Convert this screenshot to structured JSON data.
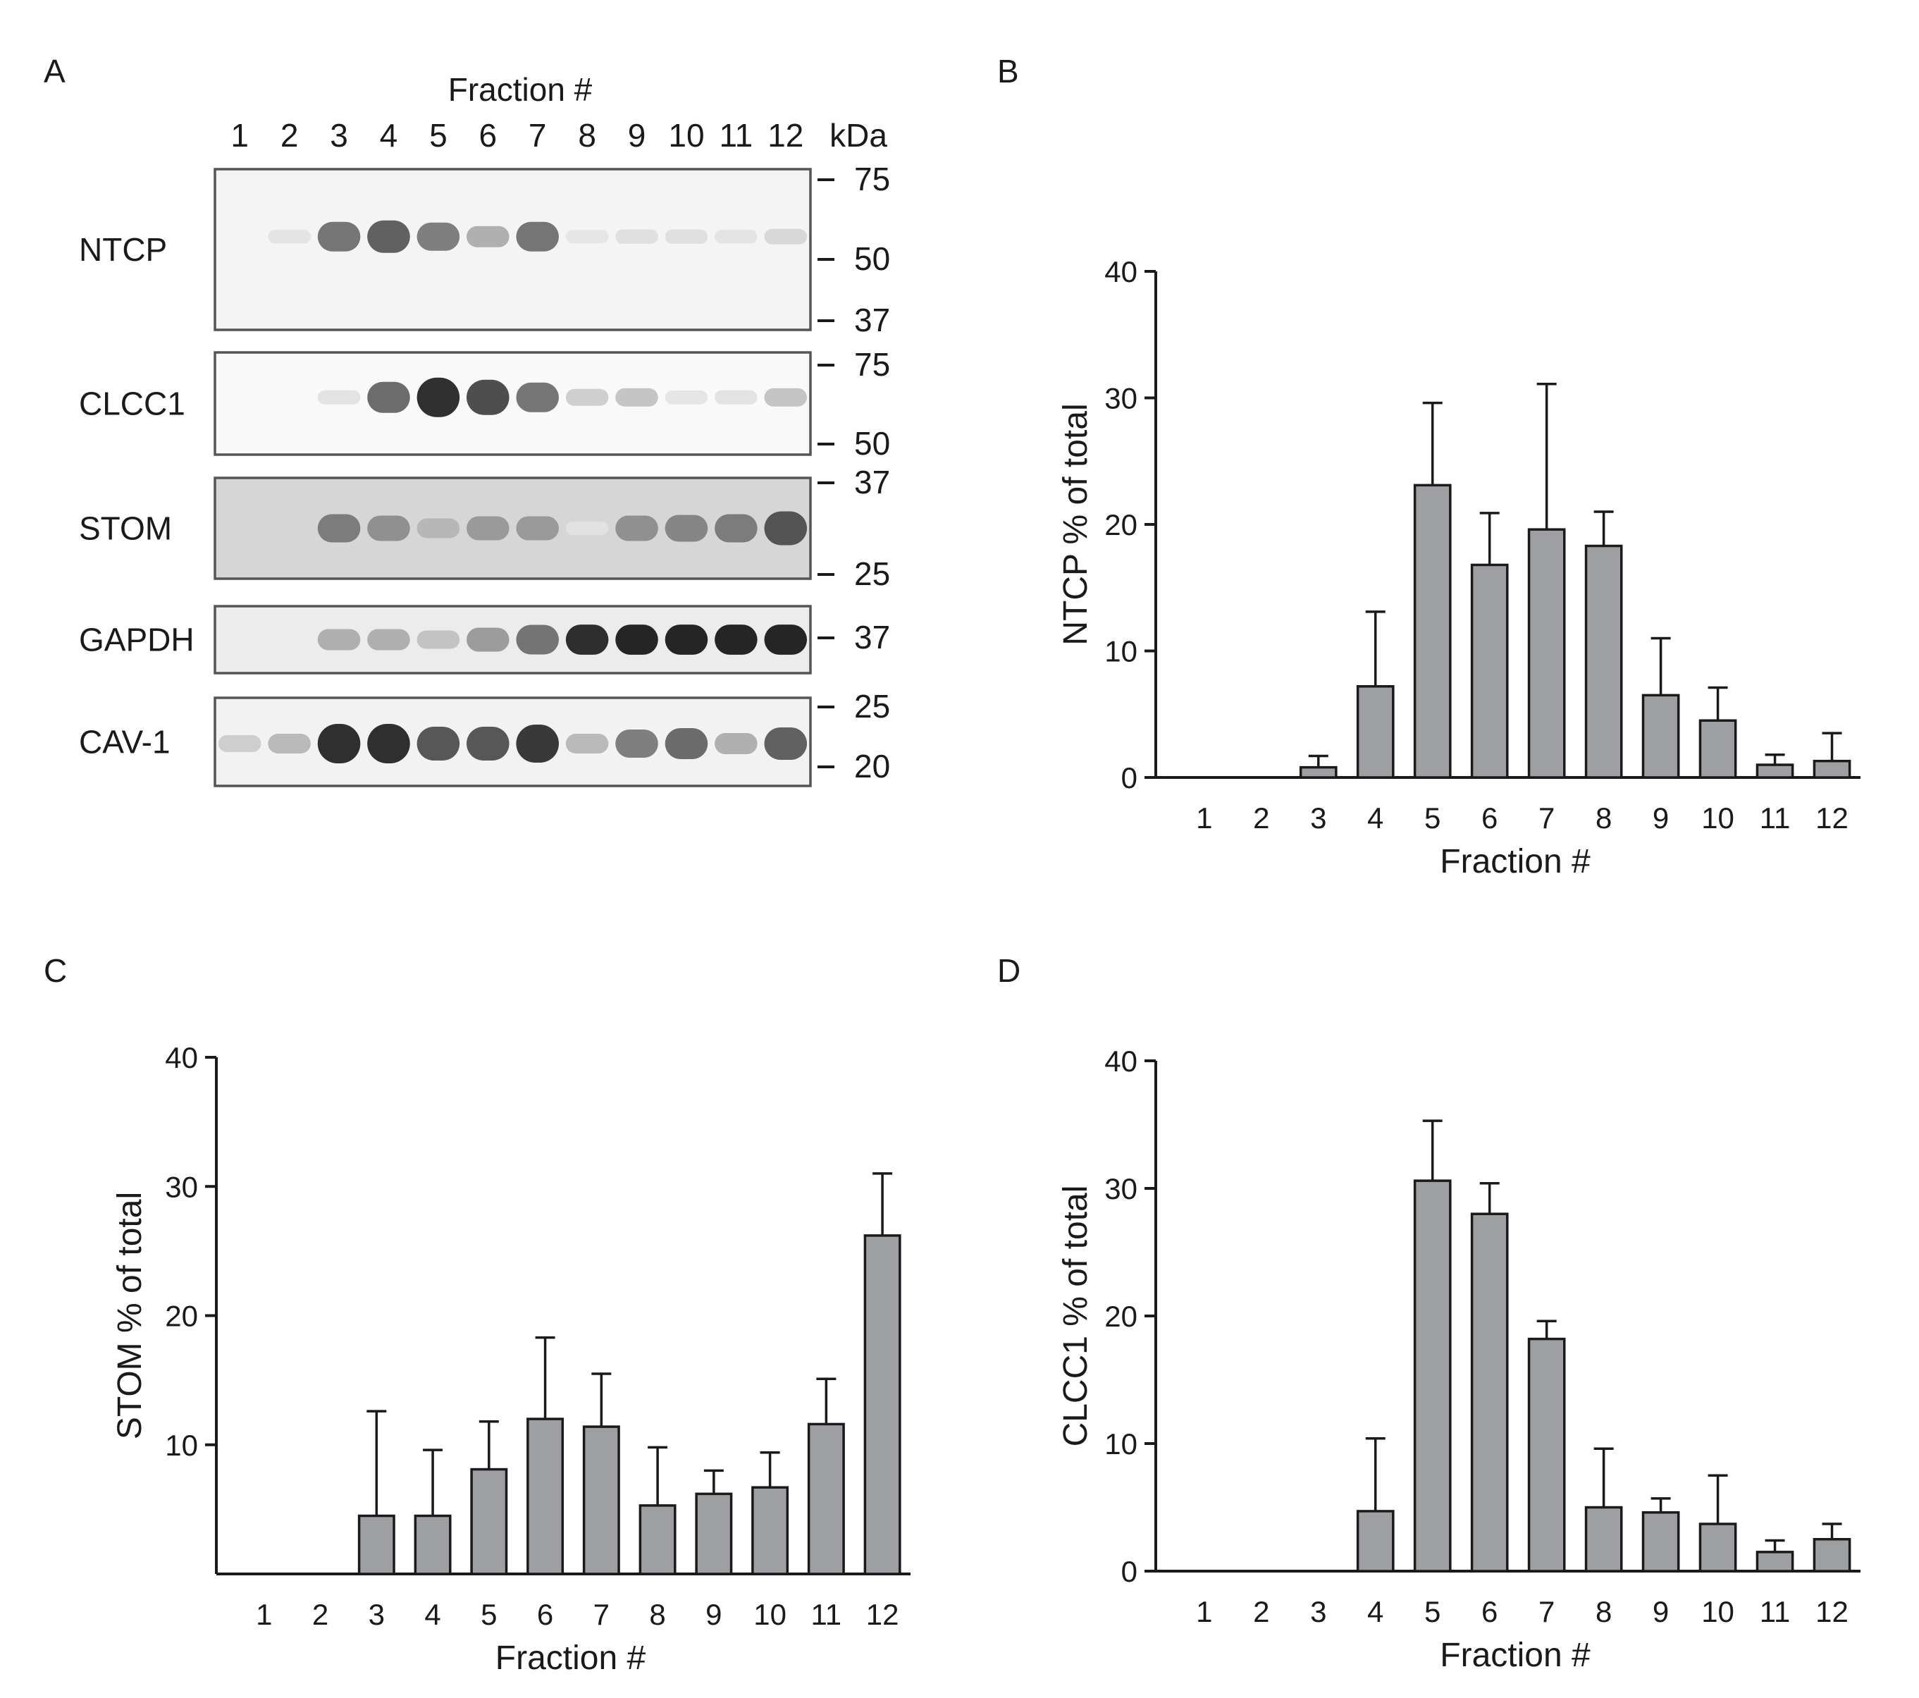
{
  "panels": {
    "A": {
      "letter": "A",
      "header": "Fraction #",
      "kda_label": "kDa",
      "fraction_labels": [
        "1",
        "2",
        "3",
        "4",
        "5",
        "6",
        "7",
        "8",
        "9",
        "10",
        "11",
        "12"
      ],
      "blots": [
        {
          "label": "NTCP",
          "background": "#f4f4f4",
          "markers": [
            {
              "label": "75",
              "kda": 75
            },
            {
              "label": "50",
              "kda": 50
            },
            {
              "label": "37",
              "kda": 37
            }
          ],
          "bands": [
            0,
            0.04,
            0.6,
            0.7,
            0.55,
            0.3,
            0.6,
            0.03,
            0.06,
            0.06,
            0.04,
            0.1
          ]
        },
        {
          "label": "CLCC1",
          "background": "#f9f9f9",
          "markers": [
            {
              "label": "75",
              "kda": 75
            },
            {
              "label": "50",
              "kda": 50
            }
          ],
          "bands": [
            0,
            0,
            0.05,
            0.65,
            0.95,
            0.8,
            0.6,
            0.15,
            0.2,
            0.04,
            0.05,
            0.2
          ]
        },
        {
          "label": "STOM",
          "background": "#d6d6d6",
          "markers": [
            {
              "label": "37",
              "kda": 37
            },
            {
              "label": "25",
              "kda": 25
            }
          ],
          "bands": [
            0,
            0,
            0.55,
            0.45,
            0.25,
            0.4,
            0.4,
            0.04,
            0.45,
            0.5,
            0.55,
            0.75
          ]
        },
        {
          "label": "GAPDH",
          "background": "#ececec",
          "markers": [
            {
              "label": "37",
              "kda": 37
            }
          ],
          "bands": [
            0,
            0,
            0.3,
            0.3,
            0.2,
            0.4,
            0.6,
            0.95,
            1.0,
            1.0,
            1.0,
            1.0
          ]
        },
        {
          "label": "CAV-1",
          "background": "#f2f2f2",
          "markers": [
            {
              "label": "25",
              "kda": 25
            },
            {
              "label": "20",
              "kda": 20
            }
          ],
          "bands": [
            0.15,
            0.25,
            0.95,
            0.95,
            0.75,
            0.75,
            0.9,
            0.25,
            0.55,
            0.65,
            0.3,
            0.7
          ]
        }
      ]
    },
    "B": {
      "letter": "B"
    },
    "C": {
      "letter": "C"
    },
    "D": {
      "letter": "D"
    }
  },
  "chart_data": [
    {
      "panel": "B",
      "type": "bar",
      "title": "",
      "xlabel": "Fraction #",
      "ylabel": "NTCP % of total",
      "ylim": [
        0,
        40
      ],
      "yticks": [
        "0",
        "10",
        "20",
        "30",
        "40"
      ],
      "categories": [
        "1",
        "2",
        "3",
        "4",
        "5",
        "6",
        "7",
        "8",
        "9",
        "10",
        "11",
        "12"
      ],
      "values": [
        0,
        0,
        0.8,
        7.2,
        23.1,
        16.8,
        19.6,
        18.3,
        6.5,
        4.5,
        1.0,
        1.3
      ],
      "errors": [
        0,
        0,
        0.9,
        5.9,
        6.5,
        4.1,
        11.5,
        2.7,
        4.5,
        2.6,
        0.8,
        2.2
      ]
    },
    {
      "panel": "C",
      "type": "bar",
      "title": "",
      "xlabel": "Fraction #",
      "ylabel": "STOM % of total",
      "ylim": [
        0,
        40
      ],
      "yticks": [
        "10",
        "20",
        "30",
        "40"
      ],
      "categories": [
        "1",
        "2",
        "3",
        "4",
        "5",
        "6",
        "7",
        "8",
        "9",
        "10",
        "11",
        "12"
      ],
      "values": [
        0,
        0,
        4.5,
        4.5,
        8.1,
        12.0,
        11.4,
        5.3,
        6.2,
        6.7,
        11.6,
        26.2
      ],
      "errors": [
        0,
        0,
        8.1,
        5.1,
        3.7,
        6.3,
        4.1,
        4.5,
        1.8,
        2.7,
        3.5,
        4.8
      ]
    },
    {
      "panel": "D",
      "type": "bar",
      "title": "",
      "xlabel": "Fraction #",
      "ylabel": "CLCC1 % of total",
      "ylim": [
        0,
        40
      ],
      "yticks": [
        "0",
        "10",
        "20",
        "30",
        "40"
      ],
      "categories": [
        "1",
        "2",
        "3",
        "4",
        "5",
        "6",
        "7",
        "8",
        "9",
        "10",
        "11",
        "12"
      ],
      "values": [
        0,
        0,
        0,
        4.7,
        30.6,
        28.0,
        18.2,
        5.0,
        4.6,
        3.7,
        1.5,
        2.5
      ],
      "errors": [
        0,
        0,
        0,
        5.7,
        4.7,
        2.4,
        1.4,
        4.6,
        1.1,
        3.8,
        0.9,
        1.2
      ]
    }
  ]
}
